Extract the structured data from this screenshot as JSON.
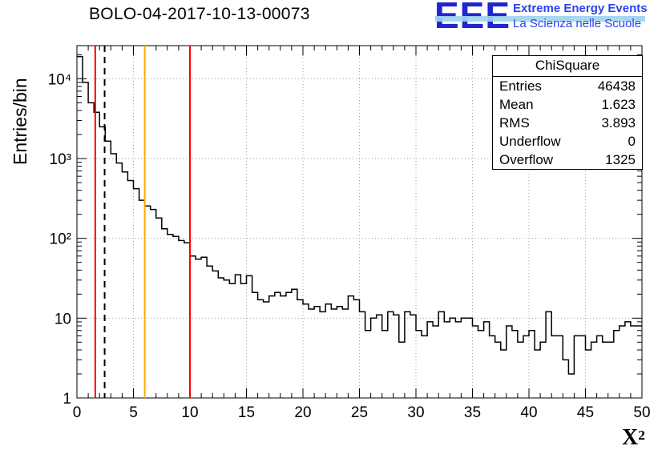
{
  "title": "BOLO-04-2017-10-13-00073",
  "logo": {
    "letters": "EEE",
    "line1": "Extreme Energy Events",
    "line2": "La Scienza nelle Scuole",
    "letter_color": "#2026d0",
    "stripe_color": "#9fd4f2"
  },
  "axes": {
    "y_label": "Entries/bin",
    "x_label_base": "X",
    "x_label_exp": "2"
  },
  "stats": {
    "title": "ChiSquare",
    "rows": [
      {
        "label": "Entries",
        "value": "46438"
      },
      {
        "label": "Mean",
        "value": "1.623"
      },
      {
        "label": "RMS",
        "value": "3.893"
      },
      {
        "label": "Underflow",
        "value": "0"
      },
      {
        "label": "Overflow",
        "value": "1325"
      }
    ]
  },
  "chart_data": {
    "type": "bar",
    "subtype": "step-histogram",
    "title": "BOLO-04-2017-10-13-00073",
    "xlabel": "chi^2",
    "ylabel": "Entries/bin",
    "xlim": [
      0,
      50
    ],
    "ylim": [
      1,
      26000
    ],
    "ylog": true,
    "grid": true,
    "bin_start": 0,
    "bin_width": 0.5,
    "values": [
      19000,
      9000,
      5000,
      3800,
      2500,
      1650,
      1150,
      880,
      680,
      530,
      420,
      300,
      255,
      230,
      180,
      132,
      112,
      106,
      94,
      88,
      60,
      55,
      58,
      45,
      39,
      32,
      30,
      27,
      35,
      27,
      34,
      21,
      17,
      16,
      19,
      21,
      19,
      21,
      23,
      17,
      15,
      13,
      14,
      12,
      15,
      13,
      14,
      13,
      19,
      17,
      12,
      7,
      10,
      11,
      7,
      12,
      11,
      5,
      12,
      11,
      7,
      6,
      9,
      8,
      12,
      9,
      10,
      9,
      10,
      10,
      8,
      7,
      9,
      6,
      5,
      4,
      8,
      7,
      5,
      6,
      7,
      4,
      5,
      12,
      6,
      6,
      3,
      2,
      6,
      6,
      4,
      5,
      6,
      5,
      5,
      7,
      8,
      9,
      8,
      8
    ],
    "line_color": "#000000",
    "xticks": [
      0,
      5,
      10,
      15,
      20,
      25,
      30,
      35,
      40,
      45,
      50
    ],
    "yticks": [
      {
        "v": 1,
        "label": "1"
      },
      {
        "v": 10,
        "label": "10"
      },
      {
        "v": 100,
        "label": "10²"
      },
      {
        "v": 1000,
        "label": "10³"
      },
      {
        "v": 10000,
        "label": "10⁴"
      }
    ],
    "vlines": [
      {
        "x": 1.62,
        "color": "#ff0000",
        "dash": false
      },
      {
        "x": 2.45,
        "color": "#000000",
        "dash": true
      },
      {
        "x": 6.0,
        "color": "#ffaa00",
        "dash": false
      },
      {
        "x": 10.0,
        "color": "#ff0000",
        "dash": false
      }
    ],
    "legend": "none",
    "stats_box": {
      "title": "ChiSquare",
      "entries": 46438,
      "mean": 1.623,
      "rms": 3.893,
      "underflow": 0,
      "overflow": 1325
    }
  }
}
